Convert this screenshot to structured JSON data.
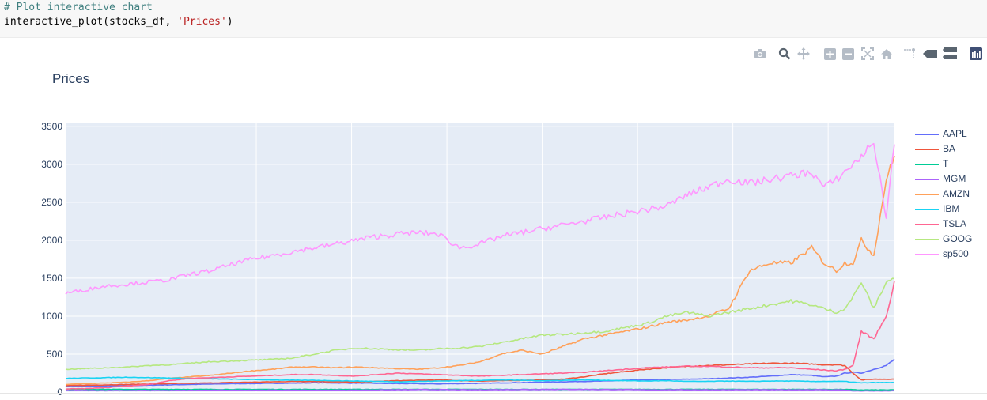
{
  "cell": {
    "comment": "# Plot interactive chart",
    "code_prefix": "interactive_plot(stocks_df, ",
    "code_string": "'Prices'",
    "code_suffix": ")"
  },
  "toolbar": {
    "icons": [
      "camera-icon",
      "zoom-icon",
      "pan-icon",
      "zoom-in-icon",
      "zoom-out-icon",
      "autoscale-icon",
      "reset-axes-icon",
      "spike-lines-icon",
      "hover-closest-icon",
      "hover-compare-icon",
      "plotly-logo-icon"
    ]
  },
  "colors": {
    "plot_bg": "#e5ecf6",
    "title": "#2a3f5f"
  },
  "chart_data": {
    "type": "line",
    "title": "Prices",
    "xlabel": "",
    "ylabel": "",
    "ylim": [
      0,
      3500
    ],
    "yticks": [
      0,
      500,
      1000,
      1500,
      2000,
      2500,
      3000,
      3500
    ],
    "grid": true,
    "legend": "right",
    "x": [
      0,
      0.025,
      0.05,
      0.075,
      0.1,
      0.125,
      0.15,
      0.175,
      0.2,
      0.225,
      0.25,
      0.275,
      0.3,
      0.325,
      0.35,
      0.375,
      0.4,
      0.425,
      0.45,
      0.475,
      0.5,
      0.525,
      0.55,
      0.575,
      0.6,
      0.625,
      0.65,
      0.675,
      0.7,
      0.725,
      0.75,
      0.775,
      0.8,
      0.825,
      0.85,
      0.875,
      0.9,
      0.915,
      0.93,
      0.94,
      0.95,
      0.96,
      0.975,
      0.99,
      1.0
    ],
    "series": [
      {
        "name": "AAPL",
        "color": "#636efa",
        "values": [
          75,
          78,
          80,
          85,
          90,
          95,
          100,
          105,
          110,
          112,
          115,
          118,
          122,
          120,
          118,
          115,
          112,
          110,
          108,
          112,
          115,
          120,
          125,
          130,
          135,
          140,
          145,
          155,
          160,
          165,
          170,
          175,
          185,
          195,
          210,
          230,
          220,
          200,
          210,
          250,
          260,
          250,
          300,
          350,
          430
        ]
      },
      {
        "name": "BA",
        "color": "#ef553b",
        "values": [
          85,
          90,
          95,
          100,
          105,
          110,
          115,
          120,
          125,
          130,
          135,
          140,
          140,
          135,
          130,
          140,
          150,
          155,
          160,
          150,
          145,
          150,
          155,
          160,
          170,
          200,
          240,
          270,
          300,
          320,
          340,
          350,
          360,
          370,
          380,
          380,
          370,
          360,
          360,
          350,
          250,
          160,
          170,
          170,
          170
        ]
      },
      {
        "name": "T",
        "color": "#00cc96",
        "values": [
          35,
          35,
          35,
          35,
          35,
          35,
          35,
          35,
          35,
          35,
          35,
          35,
          35,
          35,
          35,
          35,
          35,
          35,
          35,
          35,
          35,
          35,
          35,
          35,
          35,
          35,
          35,
          35,
          35,
          35,
          35,
          35,
          35,
          35,
          35,
          35,
          35,
          35,
          35,
          35,
          30,
          28,
          28,
          28,
          28
        ]
      },
      {
        "name": "MGM",
        "color": "#ab63fa",
        "values": [
          20,
          20,
          20,
          20,
          20,
          20,
          22,
          24,
          25,
          25,
          25,
          25,
          25,
          25,
          25,
          28,
          30,
          32,
          32,
          30,
          30,
          32,
          33,
          35,
          35,
          35,
          33,
          32,
          30,
          30,
          30,
          30,
          30,
          30,
          30,
          30,
          30,
          30,
          28,
          28,
          15,
          15,
          15,
          15,
          18
        ]
      },
      {
        "name": "AMZN",
        "color": "#FFA15A",
        "values": [
          100,
          110,
          120,
          130,
          150,
          180,
          200,
          220,
          250,
          280,
          300,
          330,
          330,
          320,
          330,
          320,
          310,
          300,
          320,
          350,
          400,
          500,
          550,
          500,
          600,
          700,
          750,
          800,
          850,
          920,
          950,
          1000,
          1100,
          1600,
          1700,
          1700,
          1900,
          1700,
          1600,
          1700,
          1700,
          2000,
          1800,
          2800,
          3100
        ]
      },
      {
        "name": "IBM",
        "color": "#19d3f3",
        "values": [
          180,
          185,
          190,
          195,
          190,
          185,
          180,
          175,
          170,
          165,
          160,
          155,
          155,
          150,
          145,
          140,
          135,
          140,
          145,
          150,
          155,
          160,
          155,
          150,
          155,
          160,
          155,
          150,
          145,
          150,
          140,
          140,
          145,
          140,
          145,
          145,
          140,
          140,
          140,
          140,
          130,
          120,
          125,
          125,
          125
        ]
      },
      {
        "name": "TSLA",
        "color": "#FF6692",
        "values": [
          40,
          45,
          60,
          80,
          100,
          150,
          180,
          190,
          200,
          210,
          220,
          230,
          230,
          220,
          210,
          230,
          250,
          240,
          230,
          220,
          210,
          220,
          230,
          240,
          250,
          260,
          280,
          300,
          320,
          330,
          340,
          340,
          330,
          320,
          320,
          320,
          300,
          290,
          280,
          300,
          350,
          800,
          700,
          1000,
          1450
        ]
      },
      {
        "name": "GOOG",
        "color": "#B6E880",
        "values": [
          300,
          310,
          320,
          330,
          350,
          360,
          380,
          400,
          410,
          420,
          430,
          450,
          500,
          550,
          580,
          570,
          560,
          550,
          570,
          580,
          600,
          650,
          700,
          750,
          760,
          780,
          800,
          850,
          900,
          1000,
          1050,
          1000,
          1050,
          1100,
          1150,
          1200,
          1150,
          1100,
          1050,
          1100,
          1250,
          1450,
          1100,
          1450,
          1500
        ]
      },
      {
        "name": "sp500",
        "color": "#FF97FF",
        "values": [
          1300,
          1350,
          1400,
          1420,
          1450,
          1480,
          1550,
          1600,
          1680,
          1750,
          1800,
          1850,
          1900,
          1950,
          2000,
          2050,
          2080,
          2100,
          2080,
          1900,
          1950,
          2050,
          2100,
          2150,
          2200,
          2250,
          2300,
          2350,
          2400,
          2450,
          2600,
          2700,
          2800,
          2750,
          2800,
          2850,
          2900,
          2700,
          2800,
          2900,
          3000,
          3100,
          3300,
          2300,
          3300
        ]
      }
    ]
  }
}
